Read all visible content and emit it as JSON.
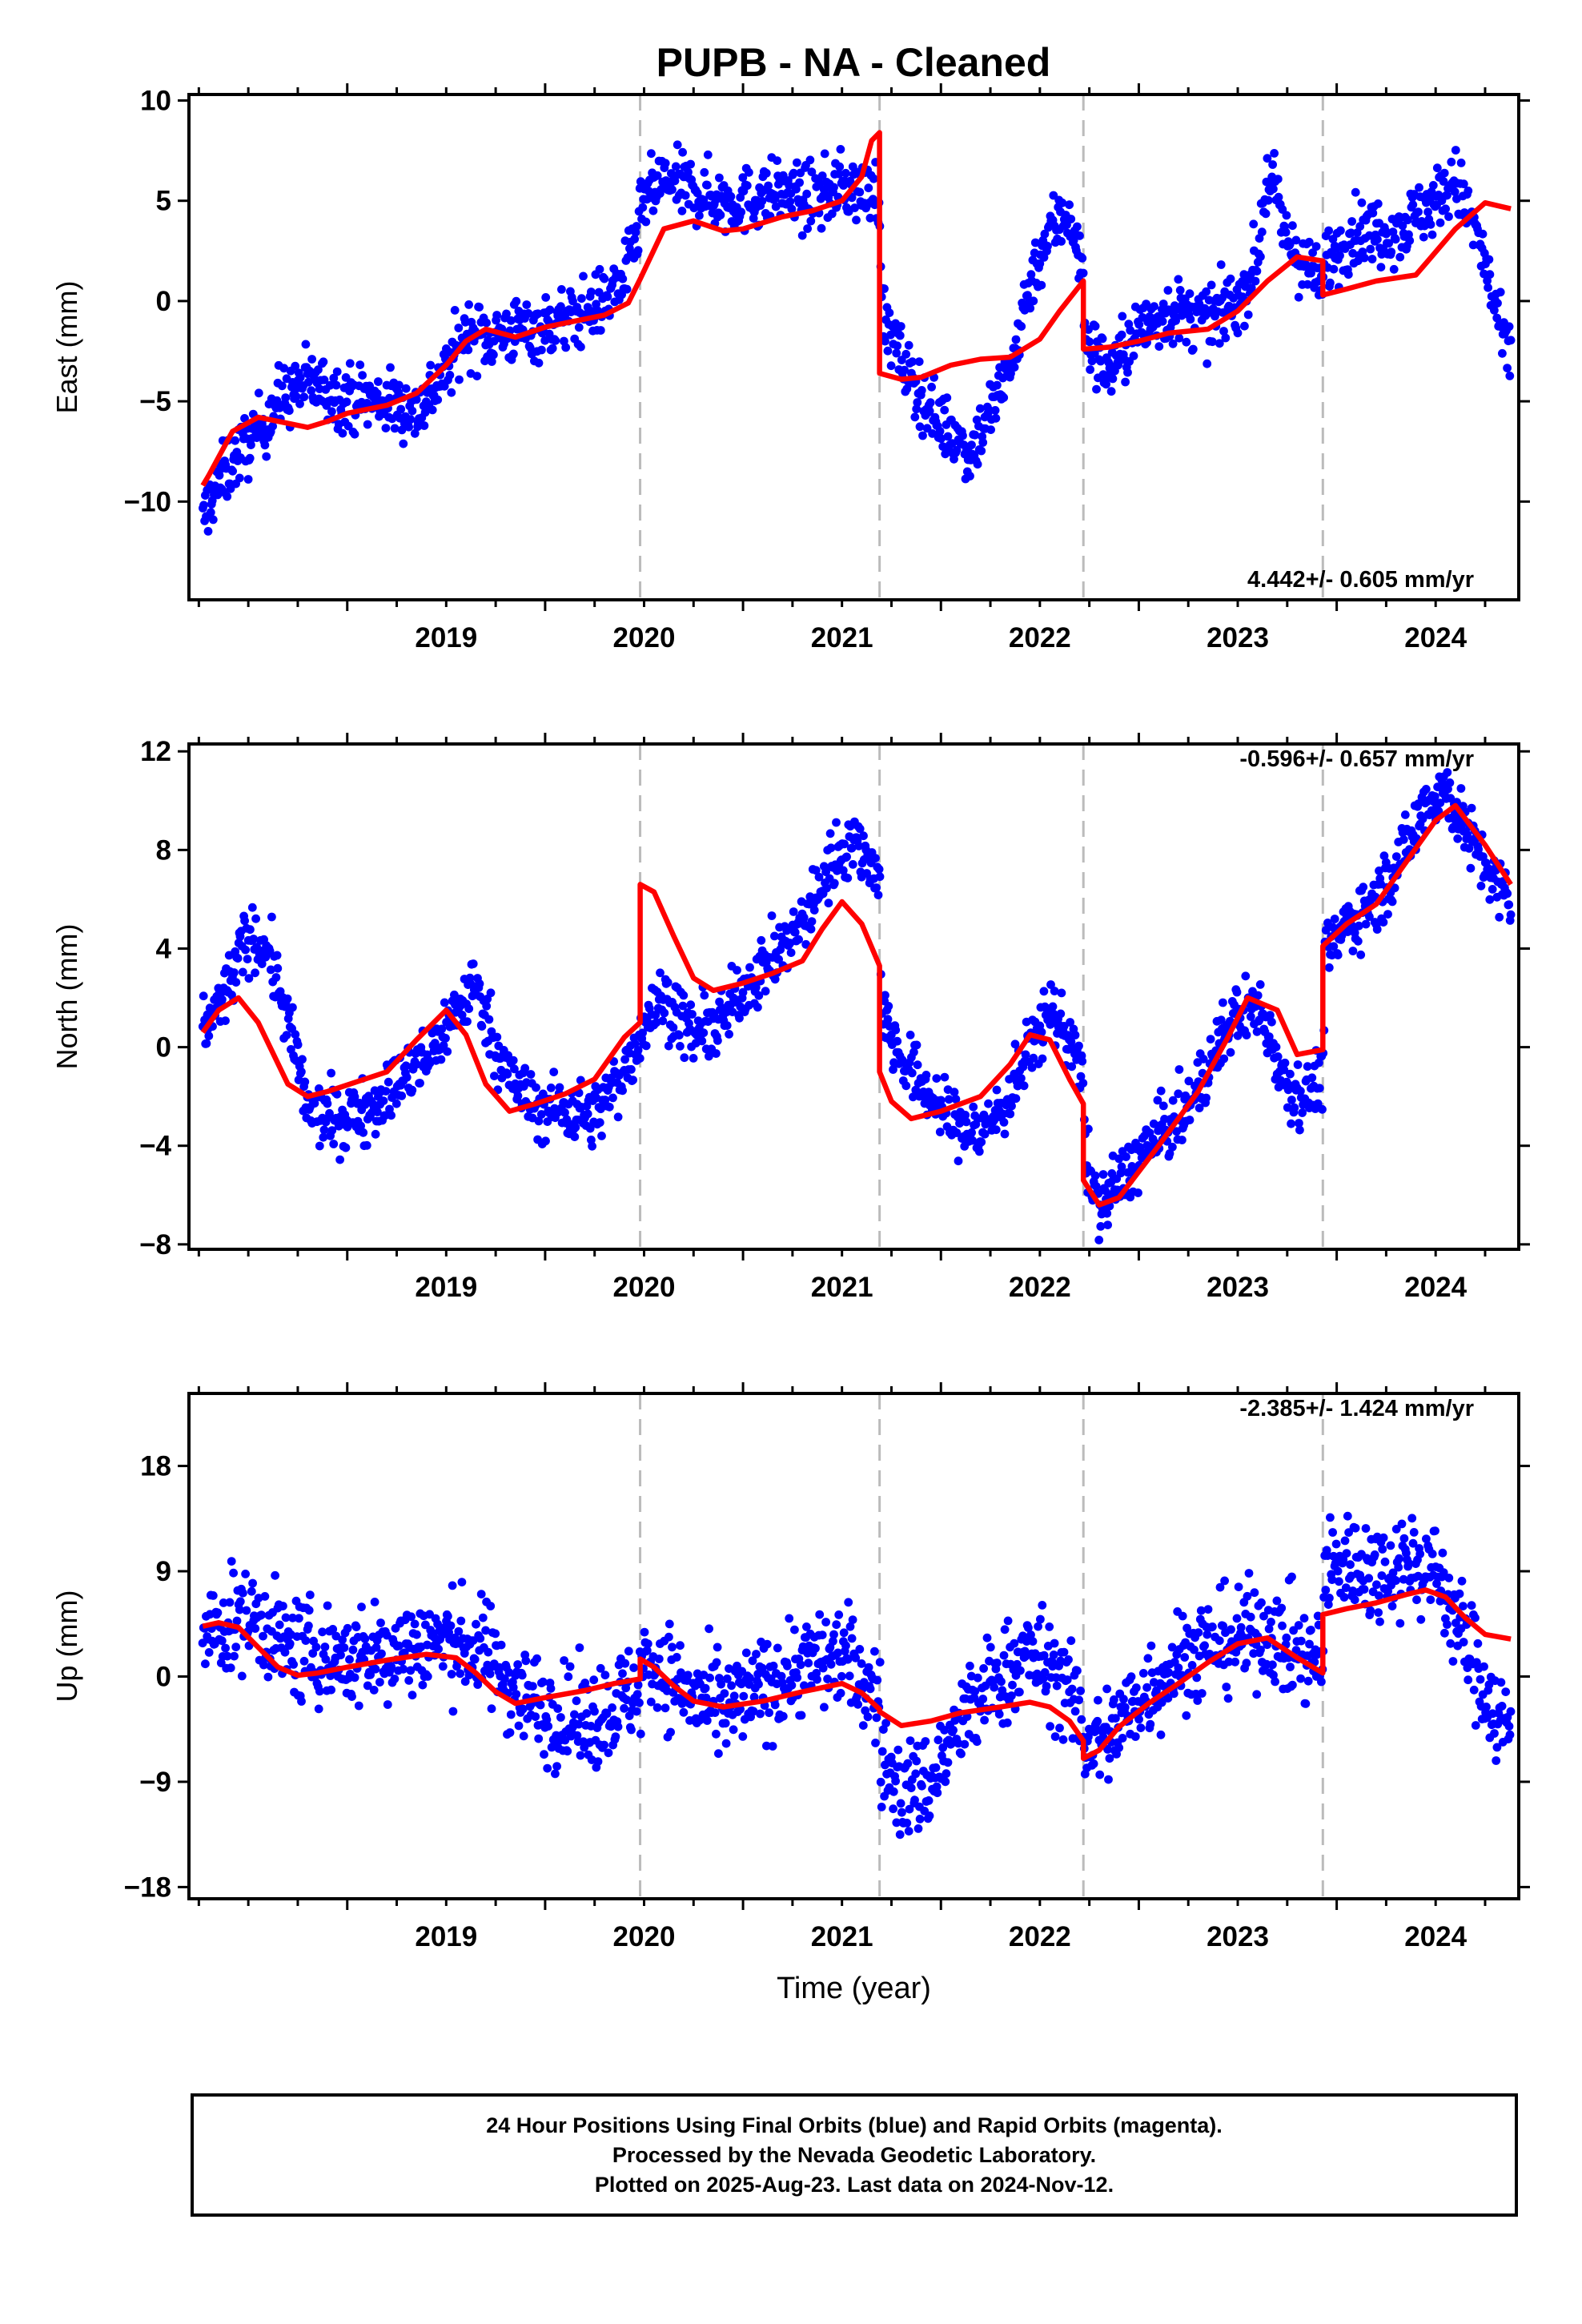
{
  "title": "PUPB  - NA - Cleaned",
  "colors": {
    "data": "#0000ff",
    "model": "#ff0000",
    "offset_line": "#bbbbbb",
    "axis": "#000000"
  },
  "chart_data": [
    {
      "type": "scatter",
      "ylabel": "East (mm)",
      "rate_label": "4.442+/- 0.605 mm/yr",
      "rate_position": "bottom-right",
      "xlim": [
        2018.2,
        2024.92
      ],
      "ylim": [
        -14.9,
        10.3
      ],
      "yticks": [
        10,
        5,
        0,
        -5,
        -10
      ],
      "yticklabels": [
        "10",
        "5",
        "0",
        "−5",
        "−10"
      ],
      "xticks": [
        2019,
        2020,
        2021,
        2022,
        2023,
        2024
      ],
      "xticklabels": [
        "2019",
        "2020",
        "2021",
        "2022",
        "2023",
        "2024"
      ],
      "offsets": [
        2020.48,
        2021.69,
        2022.72,
        2023.93
      ],
      "model": {
        "x": [
          2018.27,
          2018.3,
          2018.42,
          2018.55,
          2018.65,
          2018.8,
          2018.9,
          2019.0,
          2019.2,
          2019.35,
          2019.5,
          2019.6,
          2019.7,
          2019.85,
          2020.0,
          2020.15,
          2020.3,
          2020.42,
          2020.48,
          2020.6,
          2020.75,
          2020.9,
          2021.0,
          2021.2,
          2021.35,
          2021.5,
          2021.6,
          2021.65,
          2021.69,
          2021.69,
          2021.8,
          2021.9,
          2022.05,
          2022.2,
          2022.35,
          2022.5,
          2022.6,
          2022.68,
          2022.72,
          2022.72,
          2022.85,
          2023.0,
          2023.15,
          2023.35,
          2023.5,
          2023.65,
          2023.8,
          2023.93,
          2023.93,
          2024.05,
          2024.2,
          2024.4,
          2024.6,
          2024.75,
          2024.88
        ],
        "y": [
          -9.2,
          -8.7,
          -6.5,
          -5.8,
          -6.0,
          -6.3,
          -6.0,
          -5.6,
          -5.2,
          -4.6,
          -3.2,
          -2.0,
          -1.4,
          -1.8,
          -1.3,
          -1.0,
          -0.7,
          -0.1,
          1.1,
          3.6,
          4.0,
          3.5,
          3.6,
          4.2,
          4.5,
          5.0,
          6.2,
          8.0,
          8.4,
          -3.6,
          -3.9,
          -3.8,
          -3.2,
          -2.9,
          -2.8,
          -1.9,
          -0.5,
          0.5,
          1.0,
          -2.4,
          -2.3,
          -2.0,
          -1.6,
          -1.4,
          -0.5,
          1.0,
          2.2,
          2.0,
          0.3,
          0.6,
          1.0,
          1.3,
          3.6,
          4.9,
          4.6
        ]
      },
      "scatter": {
        "knots_x": [
          2018.25,
          2018.3,
          2018.42,
          2018.55,
          2018.65,
          2018.8,
          2018.9,
          2019.0,
          2019.2,
          2019.35,
          2019.5,
          2019.6,
          2019.7,
          2019.85,
          2020.0,
          2020.15,
          2020.3,
          2020.42,
          2020.5,
          2020.6,
          2020.75,
          2020.9,
          2021.0,
          2021.2,
          2021.35,
          2021.5,
          2021.6,
          2021.69,
          2021.7,
          2021.8,
          2021.95,
          2022.05,
          2022.15,
          2022.25,
          2022.35,
          2022.45,
          2022.55,
          2022.65,
          2022.72,
          2022.73,
          2022.85,
          2023.0,
          2023.15,
          2023.35,
          2023.5,
          2023.6,
          2023.65,
          2023.75,
          2023.9,
          2023.93,
          2023.94,
          2024.1,
          2024.3,
          2024.5,
          2024.6,
          2024.72,
          2024.85
        ],
        "knots_y": [
          -12.0,
          -10.0,
          -8.0,
          -6.5,
          -5.0,
          -4.0,
          -4.5,
          -4.8,
          -5.0,
          -5.5,
          -3.5,
          -1.5,
          -1.8,
          -1.5,
          -1.3,
          -0.8,
          0.0,
          1.5,
          5.0,
          6.0,
          5.5,
          5.0,
          5.0,
          5.5,
          5.0,
          5.8,
          5.5,
          5.5,
          -0.5,
          -3.0,
          -5.5,
          -6.5,
          -7.5,
          -5.5,
          -3.5,
          1.0,
          3.5,
          4.5,
          1.0,
          -2.0,
          -3.5,
          -1.5,
          -0.5,
          -1.0,
          0.0,
          2.0,
          6.5,
          3.0,
          1.0,
          0.5,
          2.0,
          3.5,
          3.5,
          5.0,
          6.0,
          3.0,
          -2.5
        ],
        "spread": 1.5
      }
    },
    {
      "type": "scatter",
      "ylabel": "North (mm)",
      "rate_label": "-0.596+/- 0.657 mm/yr",
      "rate_position": "top-right",
      "xlim": [
        2018.2,
        2024.92
      ],
      "ylim": [
        -8.2,
        12.3
      ],
      "yticks": [
        12,
        8,
        4,
        0,
        -4,
        -8
      ],
      "yticklabels": [
        "12",
        "8",
        "4",
        "0",
        "−4",
        "−8"
      ],
      "xticks": [
        2019,
        2020,
        2021,
        2022,
        2023,
        2024
      ],
      "xticklabels": [
        "2019",
        "2020",
        "2021",
        "2022",
        "2023",
        "2024"
      ],
      "offsets": [
        2020.48,
        2021.69,
        2022.72,
        2023.93
      ],
      "model": {
        "x": [
          2018.27,
          2018.35,
          2018.45,
          2018.55,
          2018.7,
          2018.8,
          2018.9,
          2019.05,
          2019.2,
          2019.35,
          2019.5,
          2019.6,
          2019.7,
          2019.82,
          2019.95,
          2020.1,
          2020.25,
          2020.4,
          2020.48,
          2020.48,
          2020.55,
          2020.65,
          2020.75,
          2020.85,
          2021.0,
          2021.15,
          2021.3,
          2021.4,
          2021.5,
          2021.6,
          2021.69,
          2021.69,
          2021.75,
          2021.85,
          2022.0,
          2022.2,
          2022.35,
          2022.45,
          2022.55,
          2022.65,
          2022.72,
          2022.72,
          2022.8,
          2022.9,
          2023.1,
          2023.3,
          2023.45,
          2023.55,
          2023.7,
          2023.8,
          2023.93,
          2023.93,
          2024.05,
          2024.2,
          2024.35,
          2024.5,
          2024.6,
          2024.75,
          2024.88
        ],
        "y": [
          0.6,
          1.5,
          2.0,
          1.0,
          -1.5,
          -2.0,
          -1.8,
          -1.4,
          -1.0,
          0.3,
          1.5,
          0.5,
          -1.5,
          -2.6,
          -2.3,
          -1.9,
          -1.3,
          0.4,
          1.0,
          6.6,
          6.3,
          4.5,
          2.8,
          2.3,
          2.6,
          3.0,
          3.5,
          4.8,
          5.9,
          5.0,
          3.3,
          -1.0,
          -2.2,
          -2.9,
          -2.6,
          -2.0,
          -0.7,
          0.5,
          0.3,
          -1.3,
          -2.3,
          -5.4,
          -6.4,
          -6.1,
          -4.0,
          -1.8,
          0.4,
          2.0,
          1.5,
          -0.3,
          -0.1,
          4.1,
          5.0,
          5.8,
          7.5,
          9.2,
          9.8,
          8.2,
          6.6
        ]
      },
      "scatter": {
        "knots_x": [
          2018.25,
          2018.32,
          2018.4,
          2018.5,
          2018.6,
          2018.7,
          2018.8,
          2018.95,
          2019.1,
          2019.25,
          2019.4,
          2019.55,
          2019.65,
          2019.8,
          2019.95,
          2020.1,
          2020.25,
          2020.4,
          2020.48,
          2020.5,
          2020.6,
          2020.75,
          2020.9,
          2021.0,
          2021.15,
          2021.3,
          2021.45,
          2021.55,
          2021.69,
          2021.7,
          2021.8,
          2021.9,
          2022.05,
          2022.2,
          2022.35,
          2022.45,
          2022.55,
          2022.65,
          2022.72,
          2022.73,
          2022.8,
          2022.9,
          2023.05,
          2023.25,
          2023.4,
          2023.5,
          2023.62,
          2023.75,
          2023.85,
          2023.93,
          2023.94,
          2024.05,
          2024.2,
          2024.35,
          2024.45,
          2024.55,
          2024.7,
          2024.85
        ],
        "knots_y": [
          0.8,
          1.2,
          2.5,
          4.5,
          4.0,
          1.0,
          -2.5,
          -3.0,
          -2.5,
          -1.5,
          -0.5,
          1.5,
          2.5,
          -1.0,
          -2.5,
          -2.5,
          -2.8,
          -1.0,
          0.5,
          1.0,
          2.0,
          0.5,
          1.0,
          2.5,
          3.5,
          5.0,
          7.5,
          8.5,
          7.0,
          1.5,
          -0.5,
          -1.5,
          -3.0,
          -3.5,
          -2.0,
          0.0,
          1.5,
          0.5,
          -1.5,
          -4.5,
          -6.5,
          -5.5,
          -4.0,
          -2.5,
          0.0,
          1.5,
          1.5,
          -1.5,
          -2.0,
          -1.0,
          3.5,
          5.0,
          6.0,
          8.0,
          10.0,
          10.5,
          8.0,
          6.0
        ],
        "spread": 1.2
      }
    },
    {
      "type": "scatter",
      "ylabel": "Up (mm)",
      "xlabel": "Time (year)",
      "rate_label": "-2.385+/- 1.424 mm/yr",
      "rate_position": "top-right",
      "xlim": [
        2018.2,
        2024.92
      ],
      "ylim": [
        -19.0,
        24.2
      ],
      "yticks": [
        18,
        9,
        0,
        -9,
        -18
      ],
      "yticklabels": [
        "18",
        "9",
        "0",
        "−9",
        "−18"
      ],
      "xticks": [
        2019,
        2020,
        2021,
        2022,
        2023,
        2024
      ],
      "xticklabels": [
        "2019",
        "2020",
        "2021",
        "2022",
        "2023",
        "2024"
      ],
      "offsets": [
        2020.48,
        2021.69,
        2022.72,
        2023.93
      ],
      "model": {
        "x": [
          2018.27,
          2018.35,
          2018.45,
          2018.55,
          2018.65,
          2018.75,
          2018.85,
          2019.0,
          2019.2,
          2019.4,
          2019.55,
          2019.65,
          2019.75,
          2019.85,
          2020.0,
          2020.2,
          2020.35,
          2020.48,
          2020.48,
          2020.55,
          2020.65,
          2020.75,
          2020.9,
          2021.1,
          2021.3,
          2021.5,
          2021.6,
          2021.69,
          2021.69,
          2021.8,
          2021.95,
          2022.1,
          2022.3,
          2022.45,
          2022.55,
          2022.65,
          2022.72,
          2022.72,
          2022.8,
          2022.9,
          2023.05,
          2023.2,
          2023.35,
          2023.5,
          2023.65,
          2023.8,
          2023.93,
          2023.93,
          2024.05,
          2024.2,
          2024.35,
          2024.45,
          2024.55,
          2024.65,
          2024.75,
          2024.88
        ],
        "y": [
          4.3,
          4.6,
          4.2,
          2.5,
          0.8,
          0.1,
          0.3,
          0.8,
          1.4,
          1.9,
          1.6,
          0.3,
          -1.3,
          -2.3,
          -1.8,
          -1.2,
          -0.6,
          -0.2,
          1.5,
          0.8,
          -0.8,
          -2.1,
          -2.6,
          -2.1,
          -1.3,
          -0.6,
          -1.4,
          -2.8,
          -3.0,
          -4.2,
          -3.8,
          -3.1,
          -2.6,
          -2.2,
          -2.6,
          -3.8,
          -5.5,
          -7.0,
          -6.3,
          -4.3,
          -2.3,
          -0.6,
          1.2,
          2.8,
          3.3,
          1.6,
          0.3,
          5.3,
          5.8,
          6.3,
          7.0,
          7.4,
          6.8,
          5.0,
          3.6,
          3.2
        ]
      },
      "scatter": {
        "knots_x": [
          2018.25,
          2018.35,
          2018.45,
          2018.55,
          2018.65,
          2018.8,
          2019.0,
          2019.2,
          2019.4,
          2019.55,
          2019.7,
          2019.85,
          2020.0,
          2020.2,
          2020.35,
          2020.48,
          2020.5,
          2020.6,
          2020.75,
          2020.9,
          2021.1,
          2021.3,
          2021.5,
          2021.69,
          2021.7,
          2021.8,
          2021.95,
          2022.1,
          2022.3,
          2022.45,
          2022.6,
          2022.72,
          2022.73,
          2022.85,
          2023.05,
          2023.25,
          2023.45,
          2023.65,
          2023.8,
          2023.93,
          2023.94,
          2024.05,
          2024.2,
          2024.35,
          2024.5,
          2024.65,
          2024.8,
          2024.88
        ],
        "knots_y": [
          3.0,
          4.0,
          5.0,
          5.0,
          3.0,
          2.0,
          1.5,
          2.0,
          3.0,
          3.0,
          2.0,
          -1.0,
          -3.0,
          -4.0,
          -2.5,
          -1.0,
          1.5,
          0.5,
          -2.0,
          -3.0,
          -1.0,
          1.0,
          2.0,
          -2.0,
          -7.0,
          -10.0,
          -9.0,
          -4.0,
          0.0,
          2.0,
          0.0,
          -4.0,
          -6.0,
          -5.0,
          -1.0,
          2.0,
          3.0,
          4.0,
          2.0,
          1.0,
          9.0,
          10.0,
          9.0,
          10.0,
          9.0,
          3.0,
          -3.0,
          -5.0
        ],
        "spread": 4.0
      }
    }
  ],
  "footer": {
    "line1": "24 Hour Positions Using Final Orbits (blue) and Rapid Orbits (magenta).",
    "line2": "Processed by the Nevada Geodetic Laboratory.",
    "line3": "Plotted on 2025-Aug-23. Last data on 2024-Nov-12."
  }
}
